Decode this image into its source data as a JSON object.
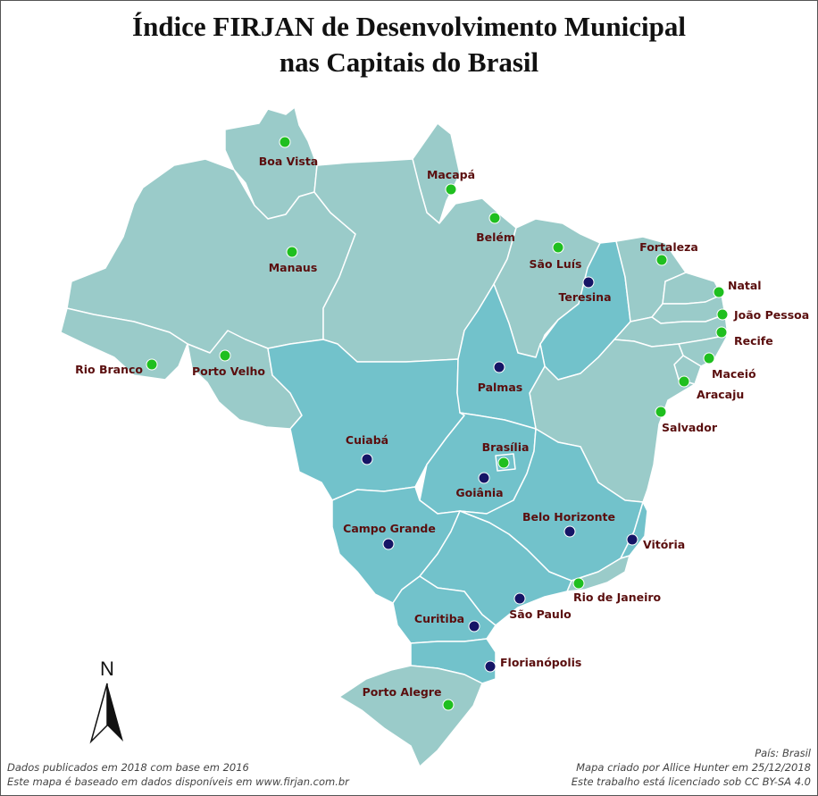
{
  "title_line1": "Índice FIRJAN de Desenvolvimento Municipal",
  "title_line2": "nas Capitais do Brasil",
  "north_label": "N",
  "footer": {
    "left1": "Dados publicados em 2018 com base em 2016",
    "left2": "Este mapa é baseado em dados disponíveis em www.firjan.com.br",
    "right1": "País: Brasil",
    "right2": "Mapa criado por Allice Hunter em 25/12/2018",
    "right3": "Este trabalho está licenciado sob CC BY-SA 4.0"
  },
  "colors": {
    "region_light": "#9acbc9",
    "region_dark": "#72c2cb",
    "border": "#ffffff",
    "dot_high": "#1fbf1f",
    "dot_mid": "#151566",
    "label": "#5a0e0e"
  },
  "capitals": [
    {
      "name": "Boa Vista",
      "category": "high"
    },
    {
      "name": "Macapá",
      "category": "high"
    },
    {
      "name": "Belém",
      "category": "high"
    },
    {
      "name": "Manaus",
      "category": "high"
    },
    {
      "name": "São Luís",
      "category": "high"
    },
    {
      "name": "Fortaleza",
      "category": "high"
    },
    {
      "name": "Teresina",
      "category": "mid"
    },
    {
      "name": "Natal",
      "category": "high"
    },
    {
      "name": "João Pessoa",
      "category": "high"
    },
    {
      "name": "Recife",
      "category": "high"
    },
    {
      "name": "Maceió",
      "category": "high"
    },
    {
      "name": "Aracaju",
      "category": "high"
    },
    {
      "name": "Salvador",
      "category": "high"
    },
    {
      "name": "Rio Branco",
      "category": "high"
    },
    {
      "name": "Porto Velho",
      "category": "high"
    },
    {
      "name": "Palmas",
      "category": "mid"
    },
    {
      "name": "Cuiabá",
      "category": "mid"
    },
    {
      "name": "Brasília",
      "category": "high"
    },
    {
      "name": "Goiânia",
      "category": "mid"
    },
    {
      "name": "Campo Grande",
      "category": "mid"
    },
    {
      "name": "Belo Horizonte",
      "category": "mid"
    },
    {
      "name": "Vitória",
      "category": "mid"
    },
    {
      "name": "Rio de Janeiro",
      "category": "high"
    },
    {
      "name": "São Paulo",
      "category": "mid"
    },
    {
      "name": "Curitiba",
      "category": "mid"
    },
    {
      "name": "Florianópolis",
      "category": "mid"
    },
    {
      "name": "Porto Alegre",
      "category": "high"
    }
  ]
}
